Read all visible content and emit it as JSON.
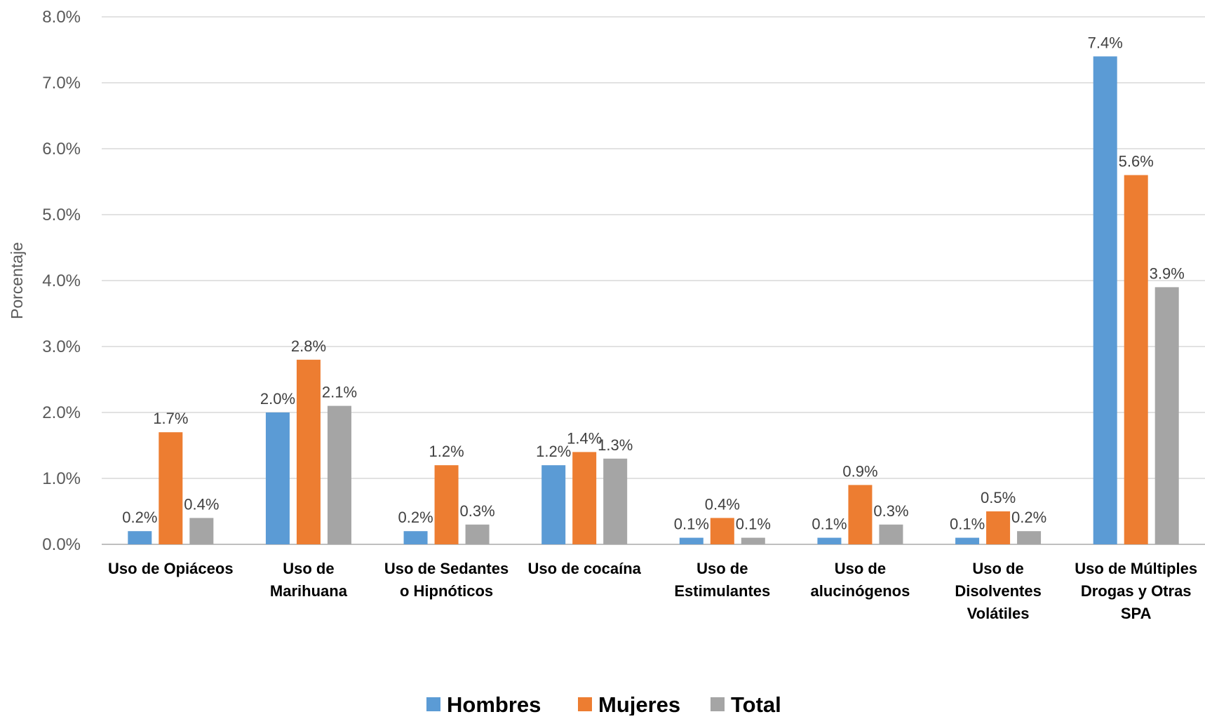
{
  "chart_data": {
    "type": "bar",
    "title": "",
    "xlabel": "",
    "ylabel": "Porcentaje",
    "ylim": [
      0,
      8
    ],
    "y_tick_format": "percent_one_decimal",
    "y_ticks": [
      "0.0%",
      "1.0%",
      "2.0%",
      "3.0%",
      "4.0%",
      "5.0%",
      "6.0%",
      "7.0%",
      "8.0%"
    ],
    "grid": true,
    "legend_position": "bottom",
    "categories": [
      [
        "Uso de Opiáceos"
      ],
      [
        "Uso de",
        "Marihuana"
      ],
      [
        "Uso de Sedantes",
        "o Hipnóticos"
      ],
      [
        "Uso de cocaína"
      ],
      [
        "Uso de",
        "Estimulantes"
      ],
      [
        "Uso de",
        "alucinógenos"
      ],
      [
        "Uso de",
        "Disolventes",
        "Volátiles"
      ],
      [
        "Uso de Múltiples",
        "Drogas y Otras",
        "SPA"
      ]
    ],
    "series": [
      {
        "name": "Hombres",
        "color": "#5b9bd5",
        "values": [
          0.2,
          2.0,
          0.2,
          1.2,
          0.1,
          0.1,
          0.1,
          7.4
        ],
        "labels": [
          "0.2%",
          "2.0%",
          "0.2%",
          "1.2%",
          "0.1%",
          "0.1%",
          "0.1%",
          "7.4%"
        ]
      },
      {
        "name": "Mujeres",
        "color": "#ed7d31",
        "values": [
          1.7,
          2.8,
          1.2,
          1.4,
          0.4,
          0.9,
          0.5,
          5.6
        ],
        "labels": [
          "1.7%",
          "2.8%",
          "1.2%",
          "1.4%",
          "0.4%",
          "0.9%",
          "0.5%",
          "5.6%"
        ]
      },
      {
        "name": "Total",
        "color": "#a5a5a5",
        "values": [
          0.4,
          2.1,
          0.3,
          1.3,
          0.1,
          0.3,
          0.2,
          3.9
        ],
        "labels": [
          "0.4%",
          "2.1%",
          "0.3%",
          "1.3%",
          "0.1%",
          "0.3%",
          "0.2%",
          "3.9%"
        ]
      }
    ]
  }
}
